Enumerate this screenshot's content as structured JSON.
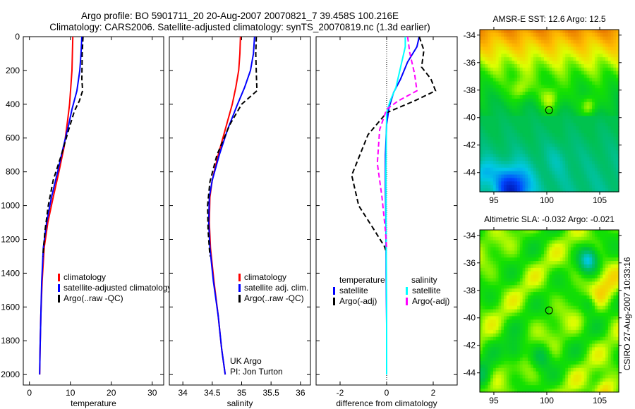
{
  "figure": {
    "title_line1": "Argo profile: BO 5901711_20 20-Aug-2007 20070821_7 39.458S 100.216E",
    "title_line2": "Climatology: CARS2006. Satellite-adjusted climatology: synTS_20070819.nc (1.3d earlier)",
    "side_stamp": "CSIRO 27-Aug-2007 10:33:16",
    "colors": {
      "climatology": "#ff0000",
      "satellite": "#0000ff",
      "argo": "#000000",
      "sal_satellite": "#00ffff",
      "sal_argo": "#ff00ff"
    }
  },
  "chart_data": [
    {
      "type": "line",
      "xlabel": "temperature",
      "ylabel": "",
      "xlim": [
        -1.5,
        32.8
      ],
      "ylim": [
        0,
        2062
      ],
      "y_reversed": true,
      "xticks": [
        "0",
        "10",
        "20",
        "30"
      ],
      "xtick_values": [
        0,
        10,
        20,
        30
      ],
      "yticks": [
        "0",
        "200",
        "400",
        "600",
        "800",
        "1000",
        "1200",
        "1400",
        "1600",
        "1800",
        "2000"
      ],
      "ytick_values": [
        0,
        200,
        400,
        600,
        800,
        1000,
        1200,
        1400,
        1600,
        1800,
        2000
      ],
      "legend": [
        "climatology",
        "satellite-adjusted climatology",
        "Argo(..raw -QC)"
      ],
      "series": [
        {
          "name": "climatology",
          "style": "solid",
          "color": "#ff0000",
          "x": [
            10.6,
            10.5,
            10.4,
            10.1,
            9.8,
            9.3,
            8.5,
            7.2,
            5.8,
            4.5,
            3.6,
            3.1,
            2.8,
            2.6,
            2.5
          ],
          "y": [
            0,
            100,
            200,
            300,
            400,
            500,
            650,
            800,
            950,
            1100,
            1250,
            1450,
            1650,
            1850,
            2000
          ]
        },
        {
          "name": "satellite-adjusted climatology",
          "style": "solid",
          "color": "#0000ff",
          "x": [
            12.8,
            12.6,
            12.3,
            11.6,
            10.4,
            9.6,
            8.3,
            6.9,
            5.4,
            4.2,
            3.4,
            3.0,
            2.8,
            2.6,
            2.5
          ],
          "y": [
            0,
            100,
            200,
            320,
            430,
            520,
            650,
            800,
            950,
            1100,
            1250,
            1450,
            1650,
            1850,
            2000
          ]
        },
        {
          "name": "Argo(..raw -QC)",
          "style": "dashed",
          "color": "#000000",
          "x": [
            13.1,
            12.9,
            12.8,
            13.0,
            12.2,
            11.0,
            9.6,
            7.8,
            5.8,
            4.6,
            3.8,
            3.3
          ],
          "y": [
            0,
            100,
            250,
            320,
            380,
            440,
            550,
            700,
            850,
            1000,
            1150,
            1300
          ]
        }
      ]
    },
    {
      "type": "line",
      "xlabel": "salinity",
      "xlim": [
        33.77,
        36.17
      ],
      "ylim": [
        0,
        2062
      ],
      "y_reversed": true,
      "xticks": [
        "34",
        "34.5",
        "35",
        "35.5",
        "36"
      ],
      "xtick_values": [
        34,
        34.5,
        35,
        35.5,
        36
      ],
      "legend": [
        "climatology",
        "satellite adj. clim.",
        "Argo(..raw -QC)"
      ],
      "annotations": [
        "UK Argo",
        "PI: Jon Turton"
      ],
      "series": [
        {
          "name": "climatology",
          "style": "solid",
          "color": "#ff0000",
          "x": [
            34.98,
            34.97,
            34.95,
            34.9,
            34.84,
            34.72,
            34.6,
            34.5,
            34.46,
            34.45,
            34.47,
            34.53,
            34.6,
            34.66,
            34.72
          ],
          "y": [
            0,
            100,
            200,
            300,
            400,
            550,
            700,
            850,
            950,
            1100,
            1250,
            1450,
            1650,
            1850,
            2000
          ]
        },
        {
          "name": "satellite adj. clim.",
          "style": "solid",
          "color": "#0000ff",
          "x": [
            35.22,
            35.2,
            35.15,
            35.05,
            34.93,
            34.76,
            34.62,
            34.5,
            34.45,
            34.44,
            34.46,
            34.52,
            34.6,
            34.66,
            34.72
          ],
          "y": [
            0,
            100,
            200,
            300,
            400,
            550,
            700,
            850,
            950,
            1100,
            1250,
            1450,
            1650,
            1850,
            2000
          ]
        },
        {
          "name": "Argo(..raw -QC)",
          "style": "dashed",
          "color": "#000000",
          "x": [
            35.25,
            35.24,
            35.25,
            35.26,
            35.0,
            34.8,
            34.58,
            34.46,
            34.42,
            34.43,
            34.46
          ],
          "y": [
            0,
            100,
            220,
            320,
            400,
            520,
            700,
            860,
            1000,
            1150,
            1300
          ]
        }
      ]
    },
    {
      "type": "line",
      "xlabel": "difference from climatology",
      "xlim": [
        -3.03,
        3.03
      ],
      "ylim": [
        0,
        2062
      ],
      "y_reversed": true,
      "xticks": [
        "-2",
        "0",
        "2"
      ],
      "xtick_values": [
        -2,
        0,
        2
      ],
      "legend_headers": [
        "temperature",
        "salinity"
      ],
      "legend": [
        "satellite",
        "Argo(-adj)",
        "satellite",
        "Argo(-adj)"
      ],
      "series": [
        {
          "name": "temperature satellite",
          "style": "solid",
          "color": "#0000ff",
          "x": [
            1.4,
            1.3,
            0.9,
            0.6,
            0.3,
            0.1,
            0.0,
            -0.05,
            -0.05,
            -0.03,
            -0.02,
            0.0,
            0.0
          ],
          "y": [
            0,
            60,
            150,
            250,
            330,
            420,
            520,
            700,
            900,
            1100,
            1400,
            1700,
            2000
          ]
        },
        {
          "name": "temperature Argo(-adj)",
          "style": "dashed",
          "color": "#000000",
          "x": [
            1.4,
            1.6,
            1.5,
            1.9,
            2.1,
            1.2,
            0.0,
            -0.8,
            -1.5,
            -1.2,
            -0.6,
            -0.1,
            0.0
          ],
          "y": [
            0,
            80,
            180,
            250,
            320,
            380,
            450,
            580,
            820,
            1000,
            1130,
            1240,
            1280
          ]
        },
        {
          "name": "salinity satellite",
          "style": "solid",
          "color": "#00ffff",
          "x": [
            0.8,
            0.8,
            0.6,
            0.4,
            0.15,
            0.0,
            -0.03,
            -0.02,
            0.0,
            0.0
          ],
          "y": [
            0,
            60,
            180,
            300,
            380,
            450,
            800,
            1200,
            1600,
            2000
          ]
        },
        {
          "name": "salinity Argo(-adj)",
          "style": "dashed",
          "color": "#ff00ff",
          "x": [
            0.9,
            1.0,
            1.2,
            1.3,
            0.5,
            0.0,
            -0.3,
            -0.4,
            -0.2,
            -0.05,
            0.0
          ],
          "y": [
            0,
            100,
            220,
            320,
            380,
            430,
            550,
            750,
            950,
            1150,
            1250
          ]
        }
      ]
    },
    {
      "type": "heatmap",
      "title": "AMSR-E SST: 12.6 Argo: 12.5",
      "xlim": [
        93.67,
        106.8
      ],
      "ylim": [
        -45.4,
        -33.6
      ],
      "xticks": [
        "95",
        "100",
        "105"
      ],
      "xtick_values": [
        95,
        100,
        105
      ],
      "yticks": [
        "-34",
        "-36",
        "-38",
        "-40",
        "-42",
        "-44"
      ],
      "ytick_values": [
        -34,
        -36,
        -38,
        -40,
        -42,
        -44
      ],
      "marker": {
        "lon": 100.216,
        "lat": -39.458
      }
    },
    {
      "type": "heatmap",
      "title": "Altimetric SLA: -0.032 Argo: -0.021",
      "xlim": [
        93.67,
        106.8
      ],
      "ylim": [
        -45.4,
        -33.6
      ],
      "xticks": [
        "95",
        "100",
        "105"
      ],
      "xtick_values": [
        95,
        100,
        105
      ],
      "yticks": [
        "-34",
        "-36",
        "-38",
        "-40",
        "-42",
        "-44"
      ],
      "ytick_values": [
        -34,
        -36,
        -38,
        -40,
        -42,
        -44
      ],
      "marker": {
        "lon": 100.216,
        "lat": -39.458
      }
    }
  ]
}
